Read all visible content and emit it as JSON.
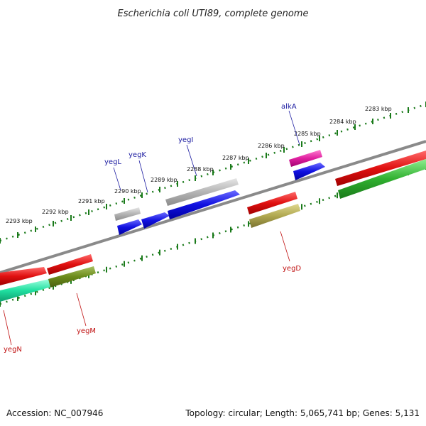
{
  "title": "Escherichia coli UTI89, complete genome",
  "footer": {
    "accession": "Accession: NC_007946",
    "summary": "Topology: circular; Length: 5,065,741 bp; Genes: 5,131"
  },
  "ticks": [
    {
      "label": "2293 kbp"
    },
    {
      "label": "2292 kbp"
    },
    {
      "label": "2291 kbp"
    },
    {
      "label": "2290 kbp"
    },
    {
      "label": "2289 kbp"
    },
    {
      "label": "2288 kbp"
    },
    {
      "label": "2287 kbp"
    },
    {
      "label": "2286 kbp"
    },
    {
      "label": "2285 kbp"
    },
    {
      "label": "2284 kbp"
    },
    {
      "label": "2283 kbp"
    }
  ],
  "genes": [
    {
      "name": "yegN"
    },
    {
      "name": "yegM"
    },
    {
      "name": "yegL"
    },
    {
      "name": "yegK"
    },
    {
      "name": "yegI"
    },
    {
      "name": "yegD"
    },
    {
      "name": "alkA"
    }
  ],
  "colors": {
    "backbone": "#8a8a8a",
    "tick": "#1a7a1a",
    "red": "#e01010",
    "blue": "#1010e0",
    "gray": "#b0b0b0",
    "magenta": "#e020a0",
    "green": "#30b030",
    "olive": "#6a8a1a",
    "khaki": "#b0a850",
    "mint": "#20e0a0"
  }
}
